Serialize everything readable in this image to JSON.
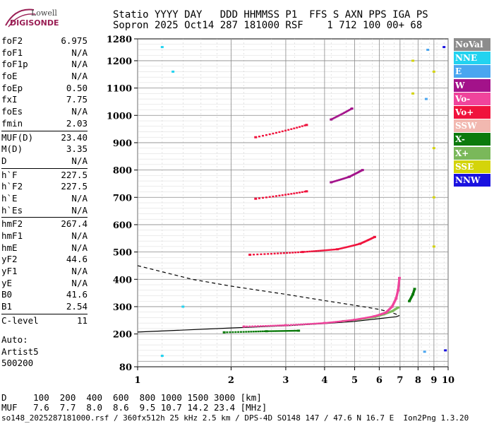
{
  "logo": {
    "top": "Lowell",
    "bottom": "DIGISONDE"
  },
  "header": {
    "line1": "Statio YYYY DAY   DDD HHMMSS P1  FFS S AXN PPS IGA PS",
    "line2": "Sopron 2025 Oct14 287 181000 RSF    1 712 100 00+ 68"
  },
  "params": [
    {
      "k": "foF2",
      "v": "6.975"
    },
    {
      "k": "foF1",
      "v": "N/A"
    },
    {
      "k": "foF1p",
      "v": "N/A"
    },
    {
      "k": "foE",
      "v": "N/A"
    },
    {
      "k": "foEp",
      "v": "0.50"
    },
    {
      "k": "fxI",
      "v": "7.75"
    },
    {
      "k": "foEs",
      "v": "N/A"
    },
    {
      "k": "fmin",
      "v": "2.03"
    },
    {
      "sep": true
    },
    {
      "k": "MUF(D)",
      "v": "23.40"
    },
    {
      "k": "M(D)",
      "v": "3.35"
    },
    {
      "k": "D",
      "v": "N/A"
    },
    {
      "sep": true
    },
    {
      "k": "h`F",
      "v": "227.5"
    },
    {
      "k": "h`F2",
      "v": "227.5"
    },
    {
      "k": "h`E",
      "v": "N/A"
    },
    {
      "k": "h`Es",
      "v": "N/A"
    },
    {
      "sep": true
    },
    {
      "k": "hmF2",
      "v": "267.4"
    },
    {
      "k": "hmF1",
      "v": "N/A"
    },
    {
      "k": "hmE",
      "v": "N/A"
    },
    {
      "k": "yF2",
      "v": "44.6"
    },
    {
      "k": "yF1",
      "v": "N/A"
    },
    {
      "k": "yE",
      "v": "N/A"
    },
    {
      "k": "B0",
      "v": "41.6"
    },
    {
      "k": "B1",
      "v": "2.54"
    },
    {
      "sep": true
    },
    {
      "k": "C-level",
      "v": "11"
    }
  ],
  "auto": {
    "line1": "Auto:",
    "line2": "Artist5",
    "line3": "500200"
  },
  "legend": [
    {
      "label": "NoVal",
      "color": "#8c8c8c"
    },
    {
      "label": "NNE",
      "color": "#22d3f0"
    },
    {
      "label": "E",
      "color": "#4aa6f0"
    },
    {
      "label": "W",
      "color": "#a3128a"
    },
    {
      "label": "Vo-",
      "color": "#f0449c"
    },
    {
      "label": "Vo+",
      "color": "#f0123c"
    },
    {
      "label": "SSW",
      "color": "#f2b8b0"
    },
    {
      "label": "X-",
      "color": "#0c7a0c"
    },
    {
      "label": "X+",
      "color": "#7ab85a"
    },
    {
      "label": "SSE",
      "color": "#d4d40a"
    },
    {
      "label": "NNW",
      "color": "#1a12e0"
    }
  ],
  "footer": {
    "line1": "D     100  200  400  600  800 1000 1500 3000 [km]",
    "line2": "MUF   7.6  7.7  8.0  8.6  9.5 10.7 14.2 23.4 [MHz]"
  },
  "filename": "so148_2025287181000.rsf / 360fx512h 25 kHz 2.5 km / DPS-4D SO148 147 / 47.6 N 16.7 E  Ion2Png 1.3.20",
  "chart_data": {
    "type": "scatter",
    "title": "",
    "xlabel": "",
    "ylabel": "",
    "x_scale": "log",
    "xlim": [
      1,
      10
    ],
    "ylim": [
      80,
      1280
    ],
    "x_ticks": [
      1,
      2,
      3,
      4,
      5,
      6,
      7,
      8,
      9,
      10
    ],
    "y_ticks": [
      80,
      200,
      300,
      400,
      500,
      600,
      700,
      800,
      900,
      1000,
      1100,
      1200,
      1280
    ],
    "series": [
      {
        "name": "X+",
        "values": [
          [
            4.6,
            247
          ],
          [
            5.2,
            254
          ],
          [
            5.8,
            262
          ],
          [
            6.2,
            272
          ],
          [
            6.6,
            283
          ],
          [
            6.9,
            297
          ]
        ]
      },
      {
        "name": "X-",
        "values": [
          [
            1.9,
            206
          ],
          [
            2.6,
            210
          ],
          [
            3.3,
            212
          ],
          [
            7.5,
            320
          ],
          [
            7.7,
            345
          ],
          [
            7.8,
            365
          ]
        ]
      },
      {
        "name": "Vo-",
        "values": [
          [
            2.2,
            227
          ],
          [
            3.0,
            232
          ],
          [
            4.0,
            240
          ],
          [
            5.0,
            252
          ],
          [
            5.8,
            265
          ],
          [
            6.3,
            278
          ],
          [
            6.6,
            300
          ],
          [
            6.8,
            330
          ],
          [
            6.9,
            360
          ],
          [
            6.97,
            405
          ]
        ]
      },
      {
        "name": "Vo+",
        "values": [
          [
            2.3,
            490
          ],
          [
            3.4,
            500
          ],
          [
            4.4,
            510
          ],
          [
            5.2,
            530
          ],
          [
            5.8,
            555
          ],
          [
            2.4,
            695
          ],
          [
            3.5,
            722
          ],
          [
            2.4,
            920
          ],
          [
            3.5,
            965
          ]
        ]
      },
      {
        "name": "W",
        "values": [
          [
            4.2,
            755
          ],
          [
            4.8,
            775
          ],
          [
            5.3,
            800
          ],
          [
            4.2,
            985
          ],
          [
            4.9,
            1025
          ]
        ]
      },
      {
        "name": "SSE",
        "values": [
          [
            7.7,
            1080
          ],
          [
            7.7,
            1200
          ],
          [
            9.0,
            520
          ],
          [
            9.0,
            700
          ],
          [
            9.0,
            880
          ],
          [
            9.0,
            1160
          ]
        ]
      },
      {
        "name": "NNE",
        "values": [
          [
            1.2,
            120
          ],
          [
            1.4,
            300
          ],
          [
            1.2,
            1250
          ],
          [
            1.3,
            1160
          ]
        ]
      },
      {
        "name": "E",
        "values": [
          [
            8.5,
            1060
          ],
          [
            8.6,
            1240
          ],
          [
            8.4,
            135
          ]
        ]
      },
      {
        "name": "NNW",
        "values": [
          [
            9.8,
            140
          ],
          [
            9.7,
            1250
          ]
        ]
      }
    ],
    "model_profile_solid": [
      [
        1.0,
        207
      ],
      [
        2.0,
        222
      ],
      [
        3.0,
        230
      ],
      [
        4.0,
        238
      ],
      [
        5.0,
        246
      ],
      [
        6.0,
        256
      ],
      [
        6.8,
        263
      ],
      [
        6.97,
        267.4
      ]
    ],
    "model_profile_dashed": [
      [
        1.0,
        450
      ],
      [
        1.5,
        400
      ],
      [
        2.0,
        375
      ],
      [
        3.0,
        345
      ],
      [
        4.0,
        322
      ],
      [
        5.0,
        305
      ],
      [
        6.0,
        290
      ],
      [
        6.6,
        278
      ],
      [
        6.97,
        267.4
      ]
    ]
  }
}
